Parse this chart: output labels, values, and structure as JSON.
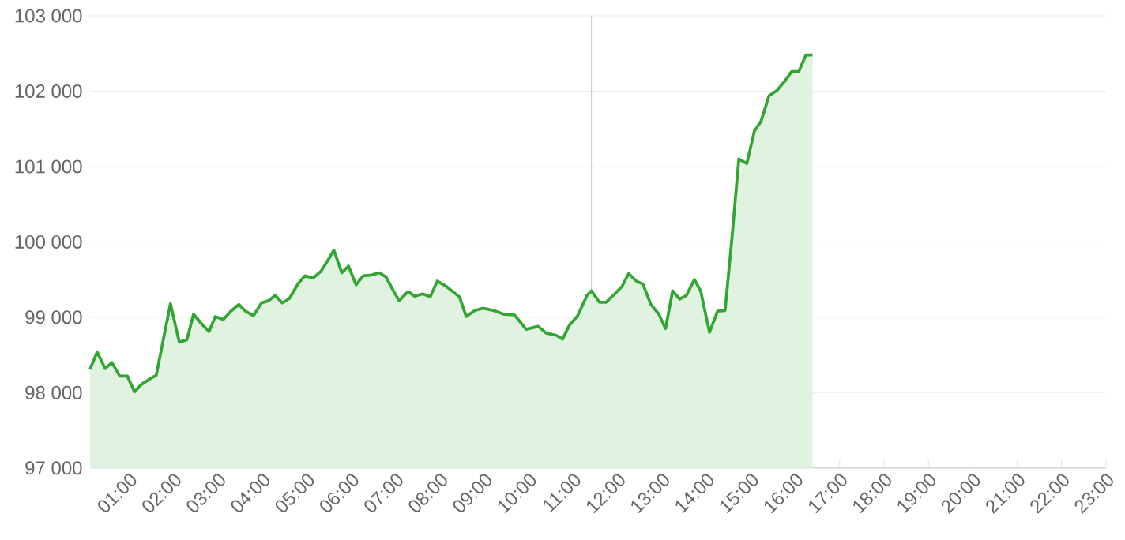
{
  "chart_data": {
    "type": "area",
    "x": [
      0.12,
      0.28,
      0.46,
      0.61,
      0.79,
      0.96,
      1.12,
      1.28,
      1.46,
      1.61,
      1.93,
      2.13,
      2.3,
      2.45,
      2.62,
      2.8,
      2.94,
      3.12,
      3.29,
      3.47,
      3.62,
      3.8,
      3.98,
      4.14,
      4.29,
      4.45,
      4.61,
      4.81,
      4.96,
      5.14,
      5.32,
      5.47,
      5.61,
      5.79,
      5.94,
      6.11,
      6.27,
      6.46,
      6.64,
      6.79,
      6.96,
      7.08,
      7.28,
      7.43,
      7.61,
      7.78,
      7.94,
      8.14,
      8.44,
      8.59,
      8.79,
      8.97,
      9.2,
      9.44,
      9.68,
      9.94,
      10.21,
      10.39,
      10.62,
      10.76,
      10.92,
      11.1,
      11.31,
      11.41,
      11.59,
      11.74,
      11.92,
      12.1,
      12.25,
      12.42,
      12.57,
      12.75,
      12.93,
      13.08,
      13.24,
      13.4,
      13.55,
      13.73,
      13.87,
      14.07,
      14.25,
      14.42,
      14.58,
      14.73,
      14.91,
      15.08,
      15.23,
      15.41,
      15.59,
      15.76,
      15.92,
      16.08,
      16.24,
      16.39
    ],
    "series": [
      {
        "color": "#33a532",
        "values": [
          98310,
          98540,
          98320,
          98400,
          98220,
          98220,
          98010,
          98110,
          98180,
          98230,
          99180,
          98670,
          98700,
          99040,
          98920,
          98810,
          99010,
          98970,
          99080,
          99170,
          99080,
          99020,
          99190,
          99220,
          99290,
          99190,
          99250,
          99450,
          99550,
          99520,
          99610,
          99750,
          99890,
          99590,
          99680,
          99430,
          99550,
          99560,
          99590,
          99530,
          99340,
          99220,
          99340,
          99280,
          99310,
          99270,
          99480,
          99410,
          99270,
          99010,
          99090,
          99120,
          99090,
          99040,
          99030,
          98840,
          98880,
          98790,
          98760,
          98710,
          98900,
          99020,
          99290,
          99350,
          99200,
          99200,
          99300,
          99410,
          99580,
          99480,
          99440,
          99170,
          99040,
          98850,
          99350,
          99240,
          99290,
          99500,
          99350,
          98800,
          99080,
          99090,
          100080,
          101100,
          101040,
          101470,
          101600,
          101940,
          102010,
          102130,
          102260,
          102260,
          102480,
          102480
        ]
      }
    ],
    "xlim": [
      0.12,
      23
    ],
    "xticks": [
      {
        "value": 1,
        "label": "01:00"
      },
      {
        "value": 2,
        "label": "02:00"
      },
      {
        "value": 3,
        "label": "03:00"
      },
      {
        "value": 4,
        "label": "04:00"
      },
      {
        "value": 5,
        "label": "05:00"
      },
      {
        "value": 6,
        "label": "06:00"
      },
      {
        "value": 7,
        "label": "07:00"
      },
      {
        "value": 8,
        "label": "08:00"
      },
      {
        "value": 9,
        "label": "09:00"
      },
      {
        "value": 10,
        "label": "10:00"
      },
      {
        "value": 11,
        "label": "11:00"
      },
      {
        "value": 12,
        "label": "12:00"
      },
      {
        "value": 13,
        "label": "13:00"
      },
      {
        "value": 14,
        "label": "14:00"
      },
      {
        "value": 15,
        "label": "15:00"
      },
      {
        "value": 16,
        "label": "16:00"
      },
      {
        "value": 17,
        "label": "17:00"
      },
      {
        "value": 18,
        "label": "18:00"
      },
      {
        "value": 19,
        "label": "19:00"
      },
      {
        "value": 20,
        "label": "20:00"
      },
      {
        "value": 21,
        "label": "21:00"
      },
      {
        "value": 22,
        "label": "22:00"
      },
      {
        "value": 23,
        "label": "23:00"
      }
    ],
    "ylim": [
      97000,
      103000
    ],
    "yticks": [
      {
        "value": 97000,
        "label": "97 000"
      },
      {
        "value": 98000,
        "label": "98 000"
      },
      {
        "value": 99000,
        "label": "99 000"
      },
      {
        "value": 100000,
        "label": "100 000"
      },
      {
        "value": 101000,
        "label": "101 000"
      },
      {
        "value": 102000,
        "label": "102 000"
      },
      {
        "value": 103000,
        "label": "103 000"
      }
    ],
    "grid": "y",
    "ref_lines": [
      {
        "axis": "x",
        "value": 11.41,
        "color": "#d0d0d0"
      }
    ]
  }
}
